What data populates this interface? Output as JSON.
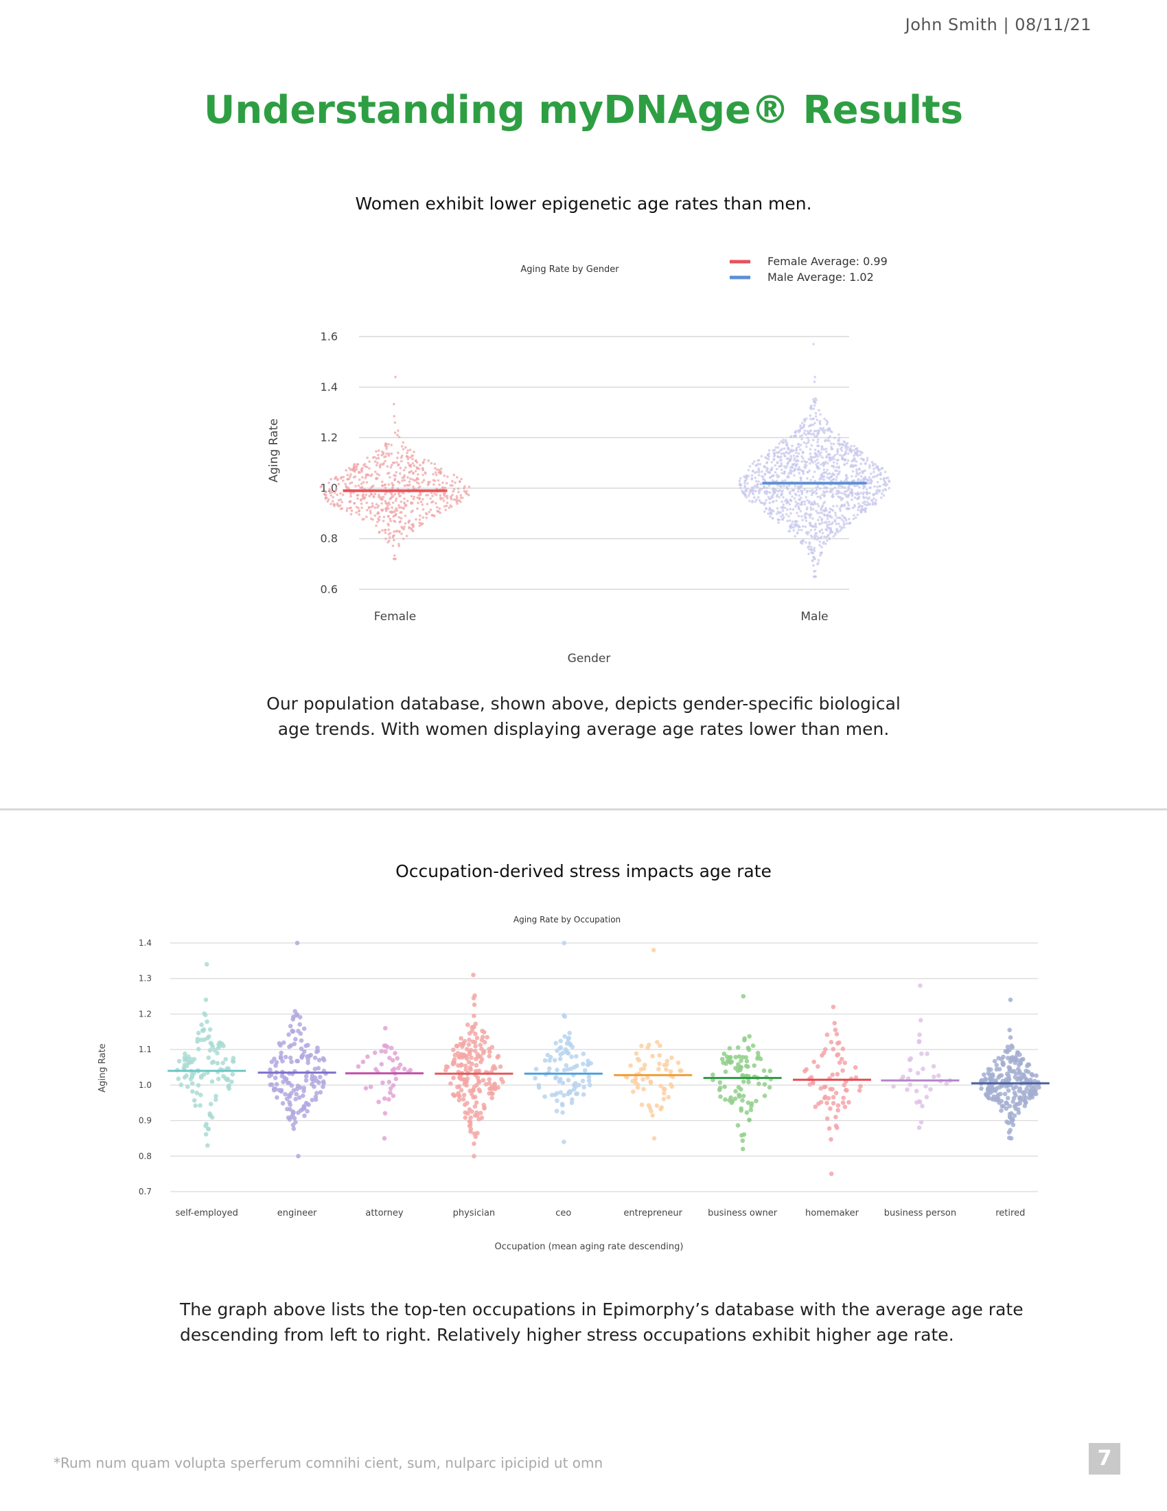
{
  "header": {
    "meta": "John Smith | 08/11/21"
  },
  "page_title": "Understanding myDNAge® Results",
  "gender_section": {
    "title": "Women exhibit lower epigenetic age rates than men.",
    "caption_line1": "Our population database, shown above, depicts gender-specific biological",
    "caption_line2": "age trends. With women displaying average age rates lower than men."
  },
  "occupation_section": {
    "title": "Occupation-derived stress impacts age rate",
    "caption_line1": "The graph above lists the top-ten occupations in Epimorphy’s database with the average age rate",
    "caption_line2": "descending from left to right. Relatively higher stress occupations exhibit higher age rate."
  },
  "footer": {
    "footnote": "*Rum num quam volupta sperferum comnihi cient, sum, nulparc ipicipid ut omn",
    "page_number": "7"
  },
  "colors": {
    "title_green": "#2e9e43",
    "female": "#f0a5a8",
    "female_mean": "#e8525a",
    "male": "#c7c8ec",
    "male_mean": "#5b8fd4",
    "grid": "#d9d9d9"
  },
  "chart_data": [
    {
      "type": "scatter",
      "subtype": "swarm",
      "title": "Aging Rate by Gender",
      "xlabel": "Gender",
      "ylabel": "Aging Rate",
      "categories": [
        "Female",
        "Male"
      ],
      "ylim": [
        0.6,
        1.6
      ],
      "yticks": [
        "0.6",
        "0.8",
        "1.0",
        "1.2",
        "1.4",
        "1.6"
      ],
      "legend_position": "top-right",
      "grid": true,
      "series": [
        {
          "name": "Female Average: 0.99",
          "category": "Female",
          "mean": 0.99,
          "min": 0.72,
          "max": 1.44,
          "color": "#f0a5a8",
          "mean_color": "#e8525a"
        },
        {
          "name": "Male Average: 1.02",
          "category": "Male",
          "mean": 1.02,
          "min": 0.65,
          "max": 1.57,
          "color": "#c7c8ec",
          "mean_color": "#5b8fd4"
        }
      ]
    },
    {
      "type": "scatter",
      "subtype": "swarm",
      "title": "Aging Rate by Occupation",
      "xlabel": "Occupation (mean aging rate descending)",
      "ylabel": "Aging Rate",
      "ylim": [
        0.7,
        1.4
      ],
      "yticks": [
        "0.7",
        "0.8",
        "0.9",
        "1.0",
        "1.1",
        "1.2",
        "1.3",
        "1.4"
      ],
      "grid": true,
      "categories": [
        "self-employed",
        "engineer",
        "attorney",
        "physician",
        "ceo",
        "entrepreneur",
        "business owner",
        "homemaker",
        "business person",
        "retired"
      ],
      "series": [
        {
          "category": "self-employed",
          "mean": 1.04,
          "min": 0.83,
          "max": 1.34,
          "color": "#a9dcd3",
          "mean_color": "#6cc7c4"
        },
        {
          "category": "engineer",
          "mean": 1.035,
          "min": 0.8,
          "max": 1.4,
          "color": "#b2a8e0",
          "mean_color": "#7a6fc7"
        },
        {
          "category": "attorney",
          "mean": 1.033,
          "min": 0.85,
          "max": 1.16,
          "color": "#e0a3d6",
          "mean_color": "#c04fa8"
        },
        {
          "category": "physician",
          "mean": 1.032,
          "min": 0.8,
          "max": 1.31,
          "color": "#f3a7a4",
          "mean_color": "#e3585a"
        },
        {
          "category": "ceo",
          "mean": 1.032,
          "min": 0.84,
          "max": 1.4,
          "color": "#b8d3ee",
          "mean_color": "#4ea0db"
        },
        {
          "category": "entrepreneur",
          "mean": 1.028,
          "min": 0.85,
          "max": 1.38,
          "color": "#fbd0a4",
          "mean_color": "#f29c38"
        },
        {
          "category": "business owner",
          "mean": 1.02,
          "min": 0.82,
          "max": 1.25,
          "color": "#8fcf8a",
          "mean_color": "#2e9e43"
        },
        {
          "category": "homemaker",
          "mean": 1.015,
          "min": 0.75,
          "max": 1.22,
          "color": "#f5a3a8",
          "mean_color": "#e8474f"
        },
        {
          "category": "business person",
          "mean": 1.013,
          "min": 0.88,
          "max": 1.28,
          "color": "#dfc3e8",
          "mean_color": "#b583c9"
        },
        {
          "category": "retired",
          "mean": 1.005,
          "min": 0.85,
          "max": 1.24,
          "color": "#a3aed1",
          "mean_color": "#4a5fa3"
        }
      ]
    }
  ]
}
